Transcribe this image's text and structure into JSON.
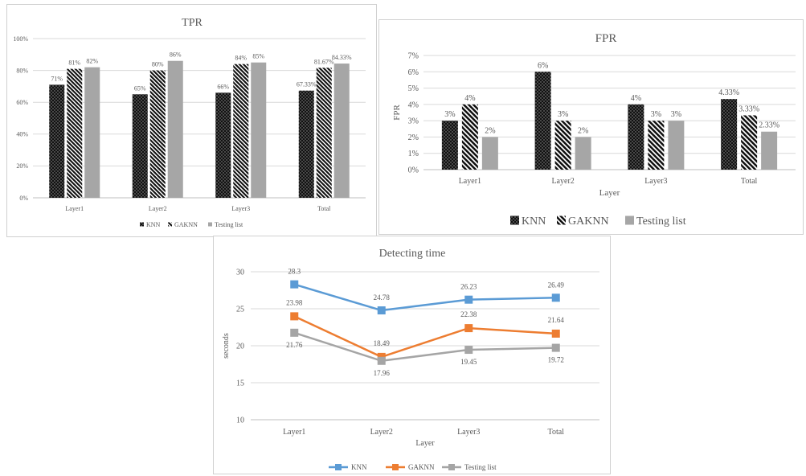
{
  "charts": [
    {
      "id": "tpr",
      "type": "bar",
      "title": "TPR",
      "xlabel": "",
      "ylabel": "",
      "categories": [
        "Layer1",
        "Layer2",
        "Layer3",
        "Total"
      ],
      "ylim": [
        0,
        100
      ],
      "yticks": [
        "0%",
        "20%",
        "40%",
        "60%",
        "80%",
        "100%"
      ],
      "ytick_values": [
        0,
        20,
        40,
        60,
        80,
        100
      ],
      "grid": true,
      "legend_position": "bottom",
      "series": [
        {
          "name": "KNN",
          "values": [
            71,
            65,
            66,
            67.33
          ],
          "labels": [
            "71%",
            "65%",
            "66%",
            "67.33%"
          ],
          "color": "#111111",
          "pattern": "dots"
        },
        {
          "name": "GAKNN",
          "values": [
            81,
            80,
            84,
            81.67
          ],
          "labels": [
            "81%",
            "80%",
            "84%",
            "81.67%"
          ],
          "color": "#222222",
          "pattern": "diagonal"
        },
        {
          "name": "Testing list",
          "values": [
            82,
            86,
            85,
            84.33
          ],
          "labels": [
            "82%",
            "86%",
            "85%",
            "84.33%"
          ],
          "color": "#a6a6a6",
          "pattern": "solid"
        }
      ]
    },
    {
      "id": "fpr",
      "type": "bar",
      "title": "FPR",
      "xlabel": "Layer",
      "ylabel": "FPR",
      "categories": [
        "Layer1",
        "Layer2",
        "Layer3",
        "Total"
      ],
      "ylim": [
        0,
        7
      ],
      "yticks": [
        "0%",
        "1%",
        "2%",
        "3%",
        "4%",
        "5%",
        "6%",
        "7%"
      ],
      "ytick_values": [
        0,
        1,
        2,
        3,
        4,
        5,
        6,
        7
      ],
      "grid": true,
      "legend_position": "bottom",
      "series": [
        {
          "name": "KNN",
          "values": [
            3,
            6,
            4,
            4.33
          ],
          "labels": [
            "3%",
            "6%",
            "4%",
            "4.33%"
          ],
          "color": "#3f3f3f",
          "pattern": "dots"
        },
        {
          "name": "GAKNN",
          "values": [
            4,
            3,
            3,
            3.33
          ],
          "labels": [
            "4%",
            "3%",
            "3%",
            "3.33%"
          ],
          "color": "#333333",
          "pattern": "diagonal"
        },
        {
          "name": "Testing list",
          "values": [
            2,
            2,
            3,
            2.33
          ],
          "labels": [
            "2%",
            "2%",
            "3%",
            "2.33%"
          ],
          "color": "#a6a6a6",
          "pattern": "solid"
        }
      ]
    },
    {
      "id": "detecting_time",
      "type": "line",
      "title": "Detecting time",
      "xlabel": "Layer",
      "ylabel": "seconds",
      "categories": [
        "Layer1",
        "Layer2",
        "Layer3",
        "Total"
      ],
      "ylim": [
        10,
        30
      ],
      "yticks": [
        "10",
        "15",
        "20",
        "25",
        "30"
      ],
      "ytick_values": [
        10,
        15,
        20,
        25,
        30
      ],
      "grid": true,
      "legend_position": "bottom",
      "series": [
        {
          "name": "KNN",
          "values": [
            28.3,
            24.78,
            26.23,
            26.49
          ],
          "labels": [
            "28.3",
            "24.78",
            "26.23",
            "26.49"
          ],
          "color": "#5b9bd5"
        },
        {
          "name": "GAKNN",
          "values": [
            23.98,
            18.49,
            22.38,
            21.64
          ],
          "labels": [
            "23.98",
            "18.49",
            "22.38",
            "21.64"
          ],
          "color": "#ed7d31"
        },
        {
          "name": "Testing list",
          "values": [
            21.76,
            17.96,
            19.45,
            19.72
          ],
          "labels": [
            "21.76",
            "17.96",
            "19.45",
            "19.72"
          ],
          "color": "#a5a5a5"
        }
      ]
    }
  ]
}
